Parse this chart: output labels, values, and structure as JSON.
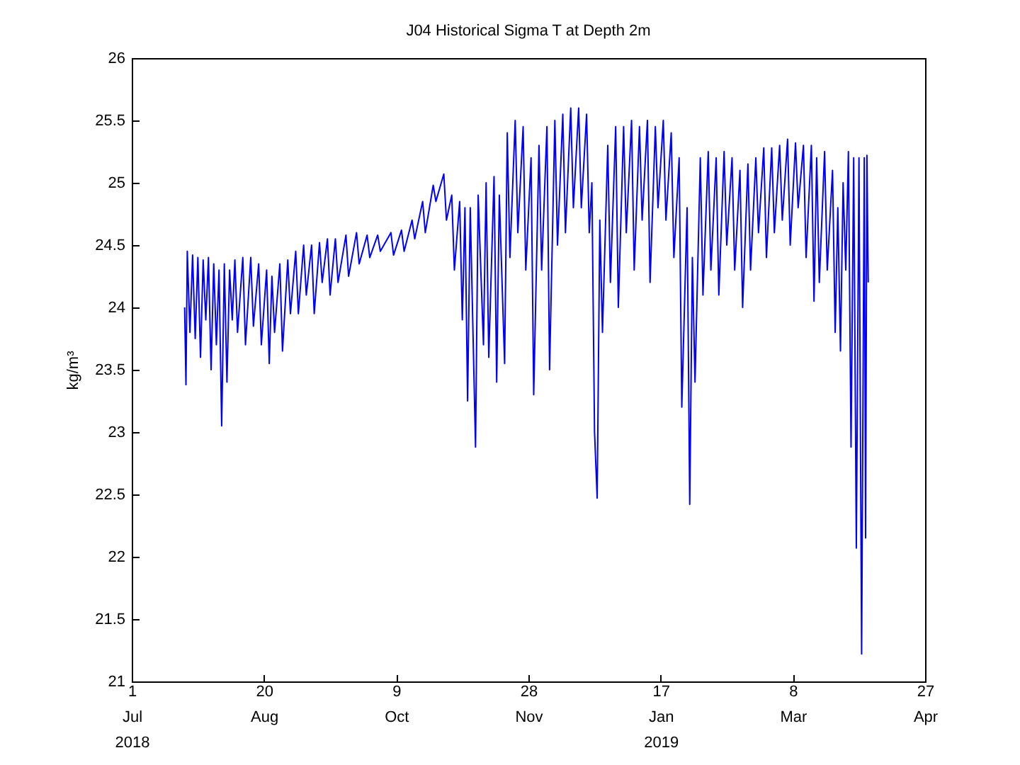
{
  "chart_data": {
    "type": "line",
    "title": "J04 Historical Sigma T at Depth 2m",
    "ylabel": "kg/m³",
    "color": "#0000ff",
    "line_style": "solid",
    "xlim": [
      "2018-07-01",
      "2019-04-27"
    ],
    "xticks": [
      {
        "value": "2018-07-01",
        "label": "1\nJul\n2018"
      },
      {
        "value": "2018-08-20",
        "label": "20\nAug"
      },
      {
        "value": "2018-10-09",
        "label": "9\nOct"
      },
      {
        "value": "2018-11-28",
        "label": "28\nNov"
      },
      {
        "value": "2019-01-17",
        "label": "17\nJan\n2019"
      },
      {
        "value": "2019-03-08",
        "label": "8\nMar"
      },
      {
        "value": "2019-04-27",
        "label": "27\nApr"
      }
    ],
    "ylim": [
      21,
      26
    ],
    "yticks": [
      21,
      21.5,
      22,
      22.5,
      23,
      23.5,
      24,
      24.5,
      25,
      25.5,
      26
    ],
    "x": [
      "2018-07-21T00:00",
      "2018-07-21T12:00",
      "2018-07-22",
      "2018-07-23",
      "2018-07-24",
      "2018-07-25",
      "2018-07-26",
      "2018-07-27",
      "2018-07-28",
      "2018-07-29",
      "2018-07-30",
      "2018-07-31",
      "2018-08-01",
      "2018-08-02",
      "2018-08-03",
      "2018-08-04",
      "2018-08-05",
      "2018-08-06",
      "2018-08-07",
      "2018-08-08",
      "2018-08-09",
      "2018-08-10",
      "2018-08-12",
      "2018-08-13",
      "2018-08-15",
      "2018-08-16",
      "2018-08-18",
      "2018-08-19",
      "2018-08-21",
      "2018-08-22",
      "2018-08-23",
      "2018-08-24",
      "2018-08-26",
      "2018-08-27",
      "2018-08-29",
      "2018-08-30",
      "2018-09-01",
      "2018-09-02",
      "2018-09-04",
      "2018-09-05",
      "2018-09-07",
      "2018-09-08",
      "2018-09-10",
      "2018-09-11",
      "2018-09-13",
      "2018-09-14",
      "2018-09-16",
      "2018-09-17",
      "2018-09-20",
      "2018-09-21",
      "2018-09-24",
      "2018-09-25",
      "2018-09-28",
      "2018-09-29",
      "2018-10-02",
      "2018-10-03",
      "2018-10-07",
      "2018-10-08",
      "2018-10-11",
      "2018-10-12",
      "2018-10-15",
      "2018-10-16",
      "2018-10-19",
      "2018-10-20",
      "2018-10-23",
      "2018-10-24",
      "2018-10-27",
      "2018-10-28",
      "2018-10-30",
      "2018-10-31",
      "2018-11-02",
      "2018-11-03",
      "2018-11-04",
      "2018-11-05",
      "2018-11-06",
      "2018-11-08",
      "2018-11-09",
      "2018-11-11",
      "2018-11-12",
      "2018-11-13",
      "2018-11-15",
      "2018-11-16",
      "2018-11-17",
      "2018-11-19",
      "2018-11-20",
      "2018-11-21",
      "2018-11-23",
      "2018-11-24",
      "2018-11-26",
      "2018-11-27",
      "2018-11-29",
      "2018-11-30",
      "2018-12-02",
      "2018-12-03",
      "2018-12-05",
      "2018-12-06",
      "2018-12-08",
      "2018-12-09",
      "2018-12-11",
      "2018-12-12",
      "2018-12-14",
      "2018-12-15",
      "2018-12-17",
      "2018-12-18",
      "2018-12-20",
      "2018-12-21",
      "2018-12-22",
      "2018-12-23",
      "2018-12-24",
      "2018-12-25",
      "2018-12-26",
      "2018-12-28",
      "2018-12-29",
      "2018-12-31",
      "2019-01-01",
      "2019-01-03",
      "2019-01-04",
      "2019-01-06",
      "2019-01-07",
      "2019-01-09",
      "2019-01-10",
      "2019-01-12",
      "2019-01-13",
      "2019-01-15",
      "2019-01-16",
      "2019-01-18",
      "2019-01-19",
      "2019-01-21",
      "2019-01-22",
      "2019-01-24",
      "2019-01-25",
      "2019-01-27",
      "2019-01-28",
      "2019-01-29",
      "2019-01-30",
      "2019-02-01",
      "2019-02-02",
      "2019-02-04",
      "2019-02-05",
      "2019-02-07",
      "2019-02-08",
      "2019-02-10",
      "2019-02-11",
      "2019-02-13",
      "2019-02-14",
      "2019-02-16",
      "2019-02-17",
      "2019-02-19",
      "2019-02-20",
      "2019-02-22",
      "2019-02-23",
      "2019-02-25",
      "2019-02-26",
      "2019-02-28",
      "2019-03-01",
      "2019-03-03",
      "2019-03-04",
      "2019-03-06",
      "2019-03-07",
      "2019-03-09",
      "2019-03-10",
      "2019-03-12",
      "2019-03-13",
      "2019-03-15",
      "2019-03-16",
      "2019-03-17",
      "2019-03-18",
      "2019-03-20",
      "2019-03-21",
      "2019-03-23",
      "2019-03-24",
      "2019-03-25",
      "2019-03-26",
      "2019-03-27",
      "2019-03-28",
      "2019-03-29",
      "2019-03-30",
      "2019-03-31",
      "2019-04-01",
      "2019-04-02",
      "2019-04-03",
      "2019-04-04T00:00",
      "2019-04-04T12:00",
      "2019-04-05T00:00",
      "2019-04-05T12:00"
    ],
    "values": [
      24.0,
      23.38,
      24.45,
      23.8,
      24.42,
      23.75,
      24.4,
      23.6,
      24.38,
      23.9,
      24.4,
      23.5,
      24.35,
      23.7,
      24.3,
      23.05,
      24.35,
      23.4,
      24.3,
      23.9,
      24.38,
      23.8,
      24.4,
      23.7,
      24.4,
      23.85,
      24.35,
      23.7,
      24.3,
      23.55,
      24.25,
      23.8,
      24.35,
      23.65,
      24.38,
      23.95,
      24.45,
      23.95,
      24.5,
      24.1,
      24.5,
      23.95,
      24.52,
      24.2,
      24.55,
      24.1,
      24.55,
      24.2,
      24.58,
      24.25,
      24.6,
      24.35,
      24.58,
      24.4,
      24.58,
      24.45,
      24.6,
      24.42,
      24.62,
      24.45,
      24.7,
      24.55,
      24.85,
      24.6,
      24.98,
      24.85,
      25.07,
      24.7,
      24.9,
      24.3,
      24.85,
      23.9,
      24.8,
      23.25,
      24.8,
      22.88,
      24.9,
      23.7,
      25.0,
      23.6,
      25.05,
      23.4,
      24.9,
      23.55,
      25.4,
      24.4,
      25.5,
      24.6,
      25.45,
      24.3,
      25.2,
      23.3,
      25.3,
      24.3,
      25.45,
      23.5,
      25.5,
      24.5,
      25.55,
      24.6,
      25.6,
      24.8,
      25.6,
      24.8,
      25.55,
      24.6,
      25.0,
      23.0,
      22.47,
      24.7,
      23.8,
      25.3,
      24.2,
      25.45,
      24.0,
      25.45,
      24.6,
      25.5,
      24.3,
      25.45,
      24.7,
      25.5,
      24.2,
      25.45,
      24.8,
      25.5,
      24.7,
      25.4,
      24.4,
      25.2,
      23.2,
      24.8,
      22.42,
      24.4,
      23.4,
      25.2,
      24.1,
      25.25,
      24.3,
      25.2,
      24.1,
      25.25,
      24.5,
      25.2,
      24.3,
      25.1,
      24.0,
      25.15,
      24.3,
      25.2,
      24.6,
      25.28,
      24.4,
      25.28,
      24.6,
      25.3,
      24.7,
      25.35,
      24.5,
      25.32,
      24.8,
      25.3,
      24.4,
      25.3,
      24.05,
      25.2,
      24.2,
      25.25,
      24.3,
      25.1,
      23.8,
      24.8,
      23.65,
      25.0,
      24.3,
      25.25,
      22.88,
      25.2,
      22.07,
      25.2,
      21.22,
      25.2,
      22.15,
      25.22,
      24.2
    ]
  }
}
